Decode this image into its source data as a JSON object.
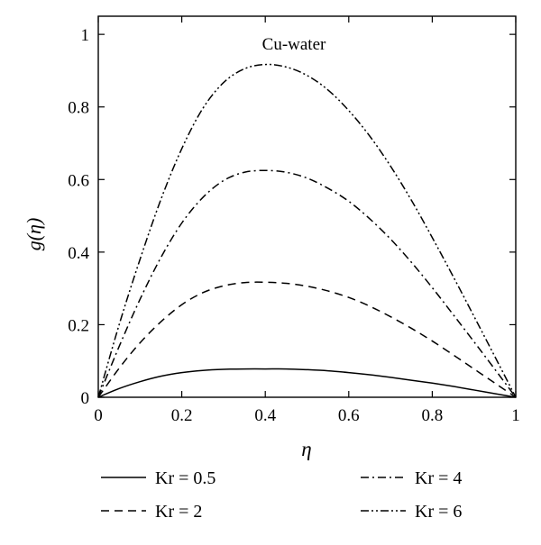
{
  "chart_data": {
    "type": "line",
    "title": "Cu-water",
    "xlabel": "η",
    "ylabel": "g(η)",
    "xlim": [
      0,
      1
    ],
    "ylim": [
      0,
      1.05
    ],
    "xticks": [
      "0",
      "0.2",
      "0.4",
      "0.6",
      "0.8",
      "1"
    ],
    "yticks": [
      "0",
      "0.2",
      "0.4",
      "0.6",
      "0.8",
      "1"
    ],
    "grid": false,
    "legend_position": "bottom",
    "series": [
      {
        "name": "Kr = 0.5",
        "linestyle": "solid",
        "color": "#000000",
        "x": [
          0,
          0.05,
          0.1,
          0.15,
          0.2,
          0.25,
          0.3,
          0.35,
          0.4,
          0.45,
          0.5,
          0.55,
          0.6,
          0.65,
          0.7,
          0.75,
          0.8,
          0.85,
          0.9,
          0.95,
          1
        ],
        "y": [
          0,
          0.024,
          0.043,
          0.058,
          0.068,
          0.074,
          0.077,
          0.078,
          0.078,
          0.078,
          0.076,
          0.073,
          0.068,
          0.062,
          0.055,
          0.047,
          0.039,
          0.03,
          0.02,
          0.01,
          0
        ]
      },
      {
        "name": "Kr = 2",
        "linestyle": "dashed",
        "color": "#000000",
        "x": [
          0,
          0.05,
          0.1,
          0.15,
          0.2,
          0.25,
          0.3,
          0.35,
          0.4,
          0.45,
          0.5,
          0.55,
          0.6,
          0.65,
          0.7,
          0.75,
          0.8,
          0.85,
          0.9,
          0.95,
          1
        ],
        "y": [
          0,
          0.08,
          0.15,
          0.208,
          0.255,
          0.288,
          0.307,
          0.316,
          0.317,
          0.314,
          0.306,
          0.293,
          0.275,
          0.251,
          0.222,
          0.19,
          0.155,
          0.117,
          0.078,
          0.039,
          0
        ]
      },
      {
        "name": "Kr = 4",
        "linestyle": "dash-dot",
        "color": "#000000",
        "x": [
          0,
          0.05,
          0.1,
          0.15,
          0.2,
          0.25,
          0.3,
          0.35,
          0.4,
          0.45,
          0.5,
          0.55,
          0.6,
          0.65,
          0.7,
          0.75,
          0.8,
          0.85,
          0.9,
          0.95,
          1
        ],
        "y": [
          0,
          0.14,
          0.27,
          0.385,
          0.48,
          0.55,
          0.597,
          0.62,
          0.625,
          0.62,
          0.604,
          0.576,
          0.54,
          0.492,
          0.436,
          0.372,
          0.302,
          0.228,
          0.153,
          0.077,
          0
        ]
      },
      {
        "name": "Kr = 6",
        "linestyle": "dash-dot-dot",
        "color": "#000000",
        "x": [
          0,
          0.05,
          0.1,
          0.15,
          0.2,
          0.25,
          0.3,
          0.35,
          0.4,
          0.45,
          0.5,
          0.55,
          0.6,
          0.65,
          0.7,
          0.75,
          0.8,
          0.85,
          0.9,
          0.95,
          1
        ],
        "y": [
          0,
          0.2,
          0.38,
          0.545,
          0.685,
          0.795,
          0.867,
          0.905,
          0.917,
          0.91,
          0.887,
          0.847,
          0.79,
          0.72,
          0.637,
          0.543,
          0.44,
          0.333,
          0.223,
          0.112,
          0
        ]
      }
    ]
  }
}
